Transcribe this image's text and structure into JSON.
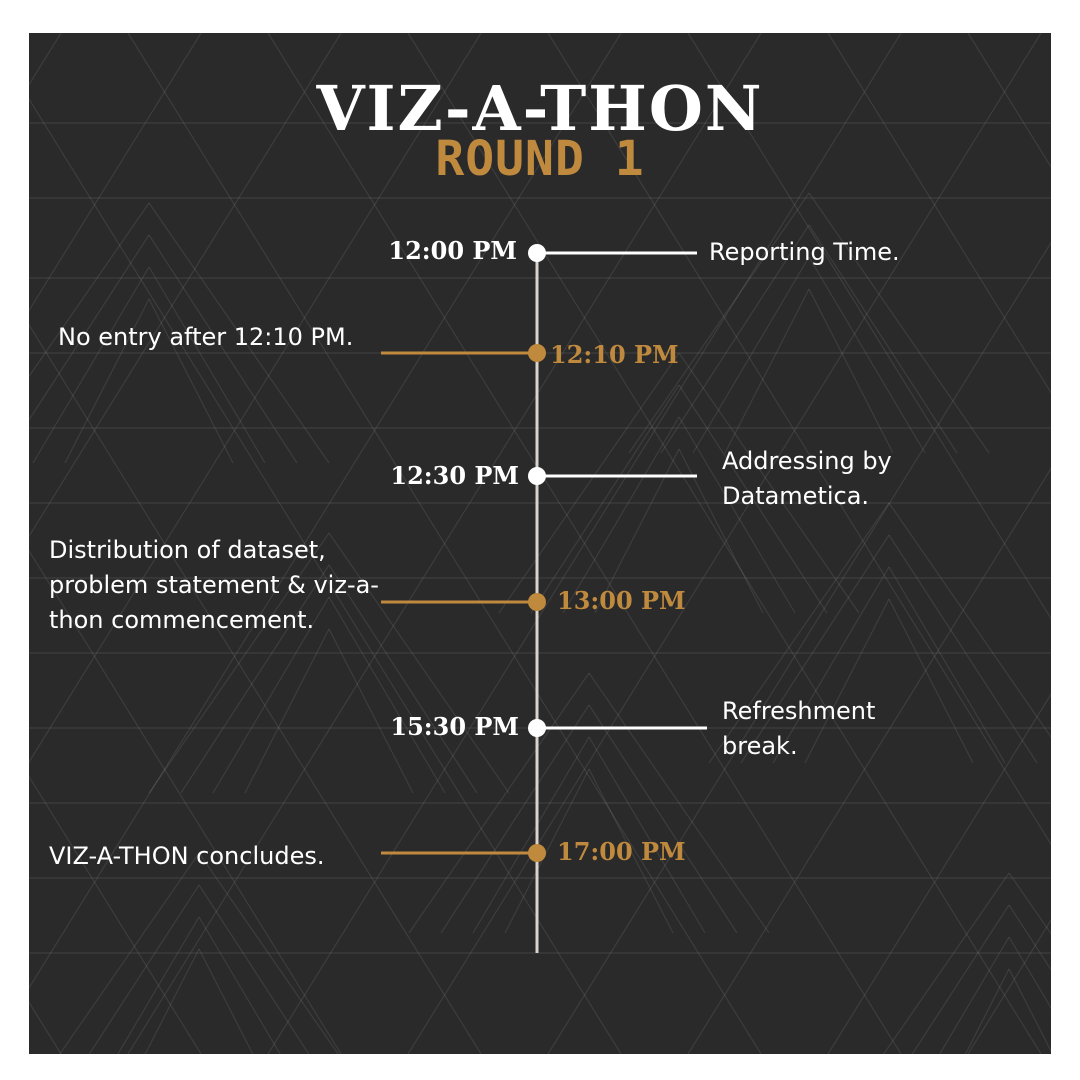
{
  "title": "VIZ-A-THON",
  "subtitle": "ROUND 1",
  "colors": {
    "background": "#2a2a2a",
    "accent": "#c08a3e",
    "white": "#ffffff",
    "line": "#d9d4cc",
    "frame": "#ffffff"
  },
  "events": [
    {
      "time": "12:00 PM",
      "description": "Reporting Time.",
      "color": "white"
    },
    {
      "time": "12:10 PM",
      "description": "No entry after 12:10 PM.",
      "color": "accent"
    },
    {
      "time": "12:30 PM",
      "description": "Addressing by Datametica.",
      "color": "white"
    },
    {
      "time": "13:00 PM",
      "description": "Distribution of dataset, problem statement & viz-a-thon commencement.",
      "color": "accent"
    },
    {
      "time": "15:30 PM",
      "description": "Refreshment break.",
      "color": "white"
    },
    {
      "time": "17:00 PM",
      "description": "VIZ-A-THON concludes.",
      "color": "accent"
    }
  ]
}
